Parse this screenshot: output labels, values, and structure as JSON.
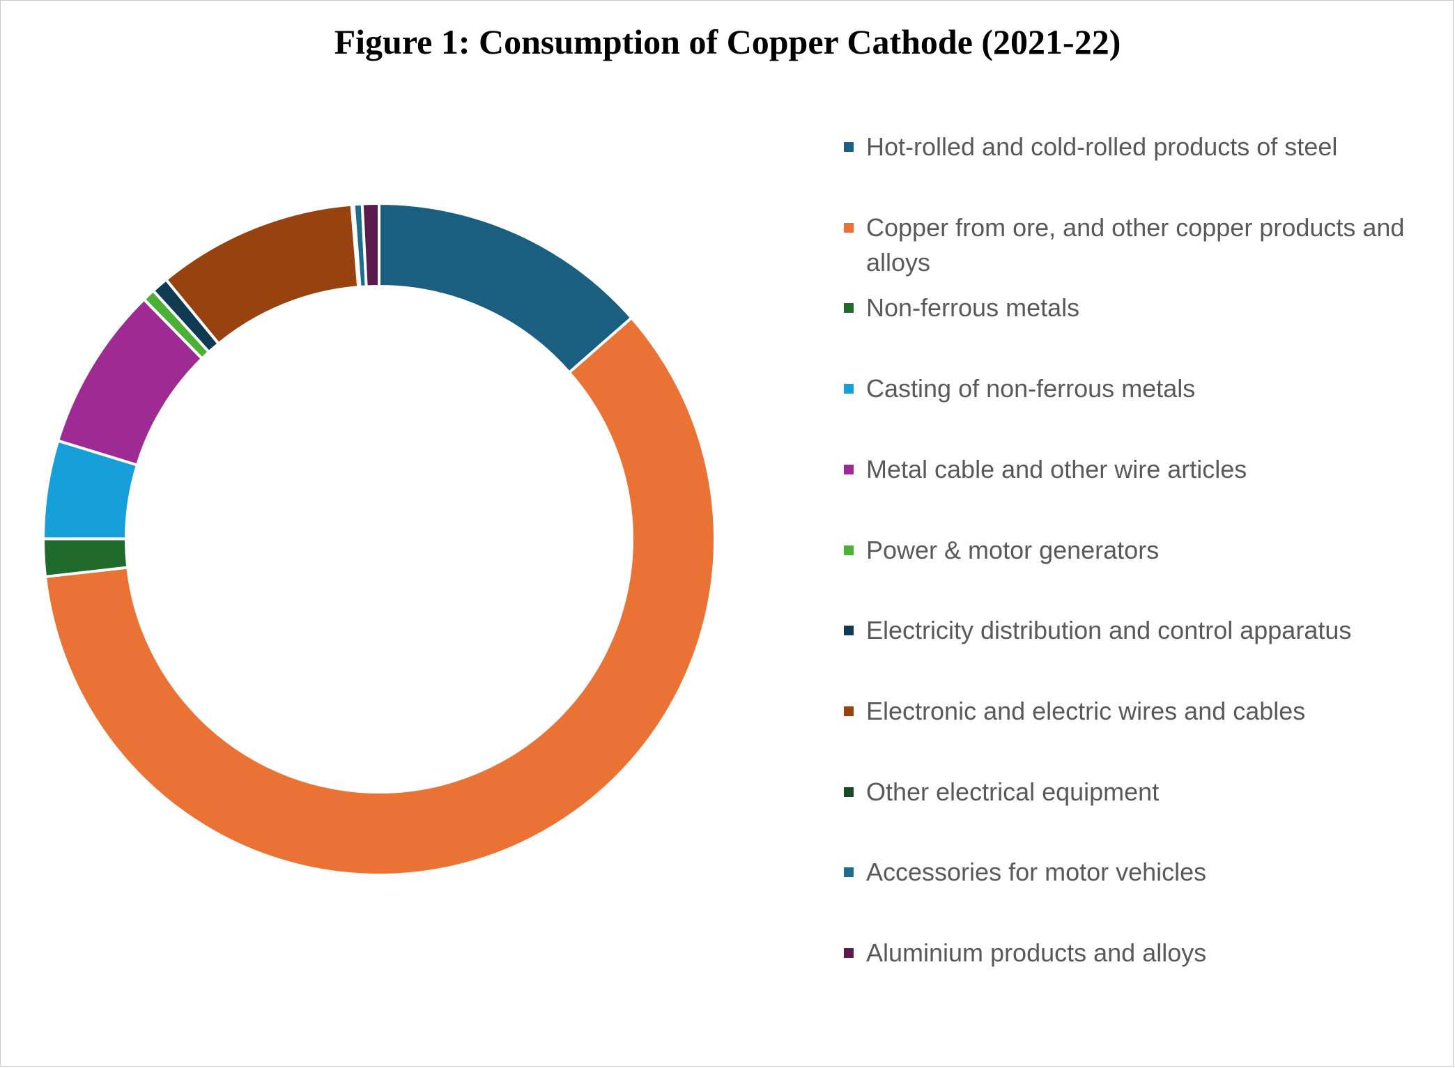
{
  "chart_data": {
    "type": "pie",
    "title": "Figure 1: Consumption of Copper Cathode (2021-22)",
    "categories": [
      "Hot-rolled and cold-rolled products of steel",
      "Copper from ore, and other copper products and alloys",
      "Non-ferrous metals",
      "Casting of non-ferrous metals",
      "Metal cable and other wire articles",
      "Power & motor generators",
      "Electricity distribution and control apparatus",
      "Electronic and electric wires and cables",
      "Other electrical equipment",
      "Accessories for motor vehicles",
      "Aluminium products and alloys"
    ],
    "values": [
      13.5,
      59.5,
      1.8,
      4.7,
      7.9,
      0.6,
      0.8,
      9.6,
      0.1,
      0.4,
      0.8
    ],
    "colors": [
      "#1b5f80",
      "#e97234",
      "#1e6b2c",
      "#169fd8",
      "#9e2a94",
      "#4caf36",
      "#0f3a52",
      "#97420f",
      "#1a4a25",
      "#1d6d8c",
      "#5a1a4c"
    ],
    "donut": true,
    "legend_position": "right"
  }
}
